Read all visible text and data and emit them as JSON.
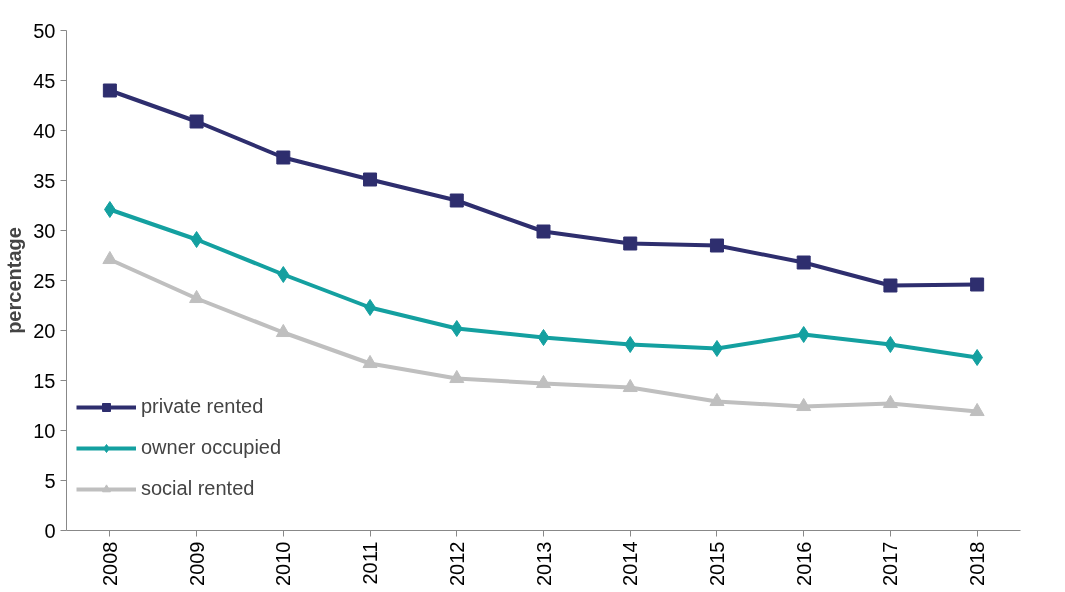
{
  "chart_data": {
    "type": "line",
    "ylabel": "percentage",
    "categories": [
      "2008",
      "2009",
      "2010",
      "2011",
      "2012",
      "2013",
      "2014",
      "2015",
      "2016",
      "2017",
      "2018"
    ],
    "series": [
      {
        "name": "private rented",
        "color": "#2e2e6e",
        "marker": "square",
        "values": [
          44.0,
          40.9,
          37.3,
          35.1,
          33.0,
          29.9,
          28.7,
          28.5,
          26.8,
          24.5,
          24.6
        ]
      },
      {
        "name": "owner occupied",
        "color": "#14a0a0",
        "marker": "diamond",
        "values": [
          32.1,
          29.1,
          25.6,
          22.3,
          20.2,
          19.3,
          18.6,
          18.2,
          19.6,
          18.6,
          17.3
        ]
      },
      {
        "name": "social rented",
        "color": "#bfbfbf",
        "marker": "triangle",
        "values": [
          27.1,
          23.2,
          19.8,
          16.7,
          15.2,
          14.7,
          14.3,
          12.9,
          12.4,
          12.7,
          11.9
        ]
      }
    ],
    "ylim": [
      0,
      50
    ],
    "yticks": [
      0,
      5,
      10,
      15,
      20,
      25,
      30,
      35,
      40,
      45,
      50
    ],
    "grid": false,
    "legend": "left",
    "line_style": "solid"
  }
}
